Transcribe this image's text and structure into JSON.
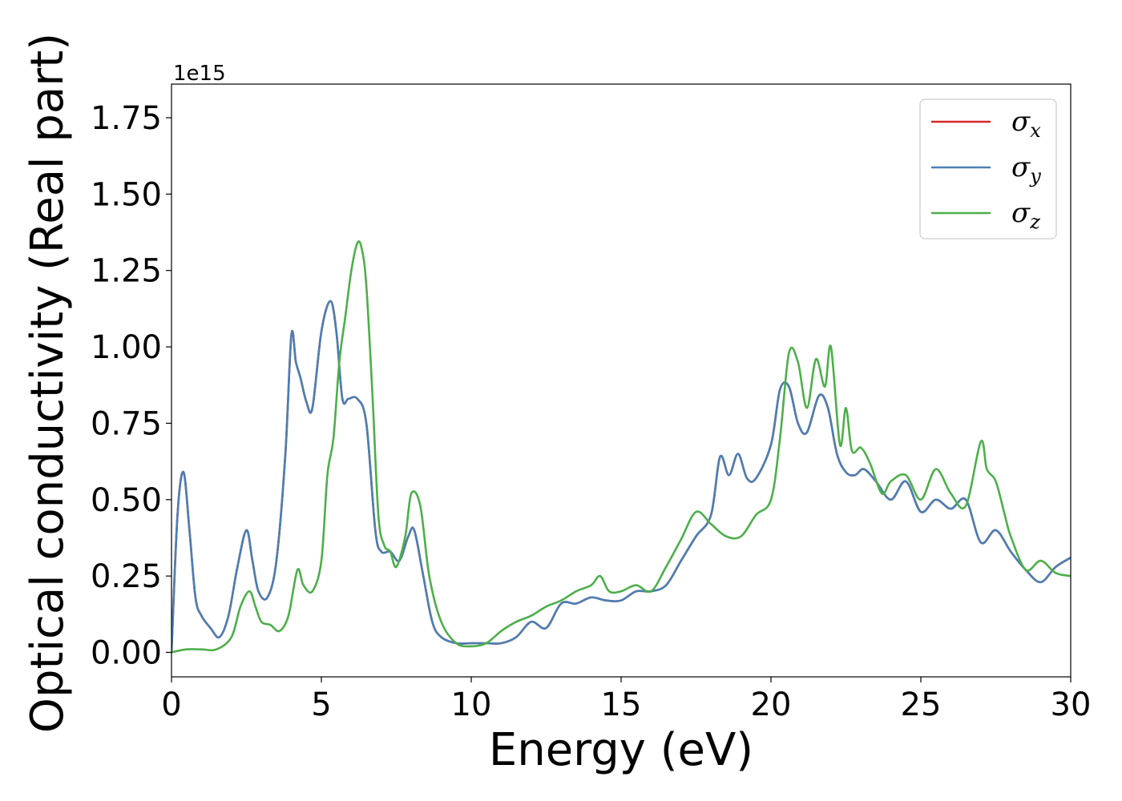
{
  "chart_data": {
    "type": "line",
    "xlabel": "Energy (eV)",
    "ylabel": "Optical conductivity (Real part)",
    "y_offset_text": "1e15",
    "xlim": [
      0,
      30
    ],
    "ylim": [
      -0.08,
      1.86
    ],
    "xticks": [
      0,
      5,
      10,
      15,
      20,
      25,
      30
    ],
    "xtick_labels": [
      "0",
      "5",
      "10",
      "15",
      "20",
      "25",
      "30"
    ],
    "yticks": [
      0.0,
      0.25,
      0.5,
      0.75,
      1.0,
      1.25,
      1.5,
      1.75
    ],
    "ytick_labels": [
      "0.00",
      "0.25",
      "0.50",
      "0.75",
      "1.00",
      "1.25",
      "1.50",
      "1.75"
    ],
    "grid": false,
    "legend_position": "top-right",
    "series": [
      {
        "name": "σx",
        "base": "σ",
        "sub": "x",
        "color": "#d62728",
        "x": [
          0,
          0.2,
          0.4,
          0.6,
          0.8,
          1.0,
          1.3,
          1.6,
          1.9,
          2.2,
          2.5,
          2.7,
          2.9,
          3.2,
          3.5,
          3.8,
          4.0,
          4.15,
          4.3,
          4.5,
          4.7,
          5.0,
          5.3,
          5.5,
          5.7,
          5.9,
          6.2,
          6.5,
          6.8,
          7.0,
          7.3,
          7.6,
          7.9,
          8.1,
          8.4,
          8.7,
          9.0,
          9.5,
          10.0,
          10.5,
          11.0,
          11.5,
          12.0,
          12.5,
          13.0,
          13.5,
          14.0,
          14.5,
          15.0,
          15.5,
          16.0,
          16.5,
          17.0,
          17.5,
          18.0,
          18.3,
          18.6,
          18.9,
          19.2,
          19.5,
          20.0,
          20.3,
          20.6,
          20.9,
          21.2,
          21.6,
          21.9,
          22.2,
          22.5,
          22.8,
          23.1,
          23.5,
          24.0,
          24.5,
          25.0,
          25.5,
          26.0,
          26.5,
          27.0,
          27.5,
          28.0,
          28.5,
          29.0,
          29.5,
          30.0
        ],
        "y": [
          0.0,
          0.45,
          0.59,
          0.4,
          0.18,
          0.12,
          0.08,
          0.05,
          0.12,
          0.28,
          0.4,
          0.3,
          0.2,
          0.18,
          0.3,
          0.65,
          1.04,
          0.95,
          0.9,
          0.82,
          0.8,
          1.05,
          1.15,
          1.05,
          0.83,
          0.83,
          0.83,
          0.75,
          0.4,
          0.33,
          0.33,
          0.3,
          0.38,
          0.4,
          0.25,
          0.1,
          0.05,
          0.03,
          0.03,
          0.03,
          0.03,
          0.05,
          0.1,
          0.08,
          0.16,
          0.16,
          0.18,
          0.17,
          0.17,
          0.2,
          0.2,
          0.22,
          0.3,
          0.38,
          0.45,
          0.64,
          0.58,
          0.65,
          0.57,
          0.57,
          0.68,
          0.86,
          0.87,
          0.75,
          0.72,
          0.84,
          0.8,
          0.65,
          0.59,
          0.58,
          0.6,
          0.56,
          0.5,
          0.56,
          0.46,
          0.5,
          0.47,
          0.5,
          0.36,
          0.4,
          0.33,
          0.27,
          0.23,
          0.28,
          0.31
        ]
      },
      {
        "name": "σy",
        "base": "σ",
        "sub": "y",
        "color": "#4a7fb5",
        "x": [
          0,
          0.2,
          0.4,
          0.6,
          0.8,
          1.0,
          1.3,
          1.6,
          1.9,
          2.2,
          2.5,
          2.7,
          2.9,
          3.2,
          3.5,
          3.8,
          4.0,
          4.15,
          4.3,
          4.5,
          4.7,
          5.0,
          5.3,
          5.5,
          5.7,
          5.9,
          6.2,
          6.5,
          6.8,
          7.0,
          7.3,
          7.6,
          7.9,
          8.1,
          8.4,
          8.7,
          9.0,
          9.5,
          10.0,
          10.5,
          11.0,
          11.5,
          12.0,
          12.5,
          13.0,
          13.5,
          14.0,
          14.5,
          15.0,
          15.5,
          16.0,
          16.5,
          17.0,
          17.5,
          18.0,
          18.3,
          18.6,
          18.9,
          19.2,
          19.5,
          20.0,
          20.3,
          20.6,
          20.9,
          21.2,
          21.6,
          21.9,
          22.2,
          22.5,
          22.8,
          23.1,
          23.5,
          24.0,
          24.5,
          25.0,
          25.5,
          26.0,
          26.5,
          27.0,
          27.5,
          28.0,
          28.5,
          29.0,
          29.5,
          30.0
        ],
        "y": [
          0.0,
          0.45,
          0.59,
          0.4,
          0.18,
          0.12,
          0.08,
          0.05,
          0.12,
          0.28,
          0.4,
          0.3,
          0.2,
          0.18,
          0.3,
          0.65,
          1.04,
          0.95,
          0.9,
          0.82,
          0.8,
          1.05,
          1.15,
          1.05,
          0.83,
          0.83,
          0.83,
          0.75,
          0.4,
          0.33,
          0.33,
          0.3,
          0.38,
          0.4,
          0.25,
          0.1,
          0.05,
          0.03,
          0.03,
          0.03,
          0.03,
          0.05,
          0.1,
          0.08,
          0.16,
          0.16,
          0.18,
          0.17,
          0.17,
          0.2,
          0.2,
          0.22,
          0.3,
          0.38,
          0.45,
          0.64,
          0.58,
          0.65,
          0.57,
          0.57,
          0.68,
          0.86,
          0.87,
          0.75,
          0.72,
          0.84,
          0.8,
          0.65,
          0.59,
          0.58,
          0.6,
          0.56,
          0.5,
          0.56,
          0.46,
          0.5,
          0.47,
          0.5,
          0.36,
          0.4,
          0.33,
          0.27,
          0.23,
          0.28,
          0.31
        ]
      },
      {
        "name": "σz",
        "base": "σ",
        "sub": "z",
        "color": "#4daf4a",
        "x": [
          0,
          0.5,
          1.0,
          1.5,
          2.0,
          2.3,
          2.6,
          2.8,
          3.0,
          3.3,
          3.6,
          3.9,
          4.2,
          4.4,
          4.7,
          5.0,
          5.2,
          5.4,
          5.6,
          5.8,
          6.0,
          6.2,
          6.35,
          6.5,
          6.7,
          6.9,
          7.1,
          7.3,
          7.5,
          7.8,
          8.0,
          8.3,
          8.6,
          9.0,
          9.5,
          10.0,
          10.5,
          11.0,
          11.5,
          12.0,
          12.5,
          13.0,
          13.5,
          14.0,
          14.3,
          14.6,
          15.0,
          15.5,
          16.0,
          16.5,
          17.0,
          17.5,
          18.0,
          18.5,
          19.0,
          19.5,
          20.0,
          20.3,
          20.6,
          20.9,
          21.2,
          21.5,
          21.8,
          22.0,
          22.3,
          22.5,
          22.7,
          23.0,
          23.3,
          23.7,
          24.0,
          24.5,
          25.0,
          25.5,
          26.0,
          26.5,
          27.0,
          27.2,
          27.5,
          27.8,
          28.0,
          28.5,
          29.0,
          29.5,
          30.0
        ],
        "y": [
          0.0,
          0.01,
          0.01,
          0.01,
          0.05,
          0.15,
          0.2,
          0.15,
          0.1,
          0.09,
          0.07,
          0.12,
          0.27,
          0.22,
          0.2,
          0.3,
          0.58,
          0.7,
          0.95,
          1.1,
          1.25,
          1.34,
          1.32,
          1.2,
          0.85,
          0.45,
          0.35,
          0.33,
          0.28,
          0.38,
          0.52,
          0.48,
          0.25,
          0.1,
          0.03,
          0.02,
          0.03,
          0.07,
          0.1,
          0.12,
          0.15,
          0.17,
          0.2,
          0.22,
          0.25,
          0.2,
          0.2,
          0.22,
          0.2,
          0.28,
          0.37,
          0.46,
          0.42,
          0.38,
          0.38,
          0.45,
          0.5,
          0.7,
          0.98,
          0.95,
          0.8,
          0.96,
          0.87,
          1.0,
          0.68,
          0.8,
          0.66,
          0.67,
          0.62,
          0.52,
          0.56,
          0.58,
          0.5,
          0.6,
          0.52,
          0.48,
          0.69,
          0.6,
          0.56,
          0.45,
          0.38,
          0.27,
          0.3,
          0.26,
          0.25
        ]
      }
    ]
  }
}
